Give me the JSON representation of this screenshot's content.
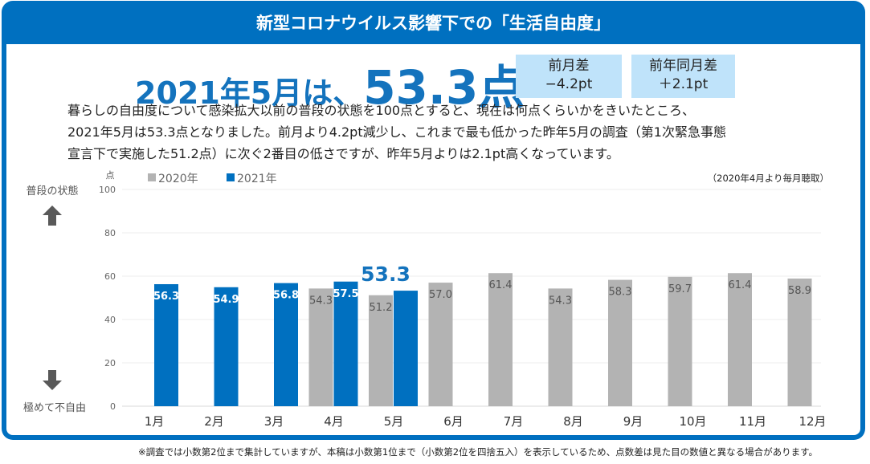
{
  "header": {
    "title": "新型コロナウイルス影響下での「生活自由度」"
  },
  "headline": {
    "prefix": "2021年5月は、",
    "score": "53.3点"
  },
  "diffs": [
    {
      "label": "前月差",
      "value": "−4.2pt"
    },
    {
      "label": "前年同月差",
      "value": "＋2.1pt"
    }
  ],
  "description": [
    "暮らしの自由度について感染拡大以前の普段の状態を100点とすると、現在は何点くらいかをきいたところ、",
    "2021年5月は53.3点となりました。前月より4.2pt減少し、これまで最も低かった昨年5月の調査（第1次緊急事態",
    "宣言下で実施した51.2点）に次ぐ2番目の低さですが、昨年5月よりは2.1pt高くなっています。"
  ],
  "side_labels": {
    "top": "普段の状態",
    "bottom": "極めて不自由"
  },
  "colors": {
    "accent": "#0070c0",
    "series2020": "#b3b3b3",
    "series2021": "#0070c0",
    "highlight": "#1473bd"
  },
  "chart_data": {
    "type": "bar",
    "title": "",
    "ylabel": "点",
    "xlabel": "",
    "ylim": [
      0,
      100
    ],
    "yticks": [
      0,
      20,
      40,
      60,
      80,
      100
    ],
    "grid": true,
    "legend_position": "top-left",
    "note": "（2020年4月より毎月聴取）",
    "categories": [
      "1月",
      "2月",
      "3月",
      "4月",
      "5月",
      "6月",
      "7月",
      "8月",
      "9月",
      "10月",
      "11月",
      "12月"
    ],
    "series": [
      {
        "name": "2020年",
        "values": [
          null,
          null,
          null,
          54.3,
          51.2,
          57.0,
          61.4,
          54.3,
          58.3,
          59.7,
          61.4,
          58.9
        ],
        "labels": [
          "",
          "",
          "",
          "54.3",
          "51.2",
          "57.0",
          "61.4",
          "54.3",
          "58.3",
          "59.7",
          "61.4",
          "58.9"
        ]
      },
      {
        "name": "2021年",
        "values": [
          56.3,
          54.9,
          56.8,
          57.5,
          53.3,
          null,
          null,
          null,
          null,
          null,
          null,
          null
        ],
        "labels": [
          "56.3",
          "54.9",
          "56.8",
          "57.5",
          "",
          "",
          "",
          "",
          "",
          "",
          "",
          ""
        ]
      }
    ],
    "callout": {
      "category": "5月",
      "series": "2021年",
      "text": "53.3"
    }
  },
  "footnote": "※調査では小数第2位まで集計していますが、本稿は小数第1位まで（小数第2位を四捨五入）を表示しているため、点数差は見た目の数値と異なる場合があります。"
}
